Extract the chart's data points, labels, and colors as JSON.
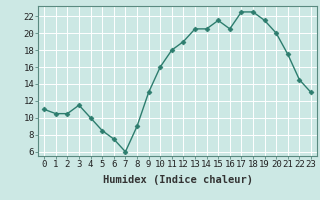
{
  "x": [
    0,
    1,
    2,
    3,
    4,
    5,
    6,
    7,
    8,
    9,
    10,
    11,
    12,
    13,
    14,
    15,
    16,
    17,
    18,
    19,
    20,
    21,
    22,
    23
  ],
  "y": [
    11,
    10.5,
    10.5,
    11.5,
    10,
    8.5,
    7.5,
    6,
    9,
    13,
    16,
    18,
    19,
    20.5,
    20.5,
    21.5,
    20.5,
    22.5,
    22.5,
    21.5,
    20,
    17.5,
    14.5,
    13
  ],
  "line_color": "#2d7d6e",
  "marker": "D",
  "marker_size": 2.5,
  "bg_color": "#cce8e4",
  "grid_color": "#e8f4f2",
  "xlabel": "Humidex (Indice chaleur)",
  "ylabel": "",
  "xlim": [
    -0.5,
    23.5
  ],
  "ylim": [
    5.5,
    23.2
  ],
  "yticks": [
    6,
    8,
    10,
    12,
    14,
    16,
    18,
    20,
    22
  ],
  "xticks": [
    0,
    1,
    2,
    3,
    4,
    5,
    6,
    7,
    8,
    9,
    10,
    11,
    12,
    13,
    14,
    15,
    16,
    17,
    18,
    19,
    20,
    21,
    22,
    23
  ],
  "xlabel_fontsize": 7.5,
  "tick_fontsize": 6.5,
  "line_width": 1.0,
  "spine_color": "#5a8a80"
}
